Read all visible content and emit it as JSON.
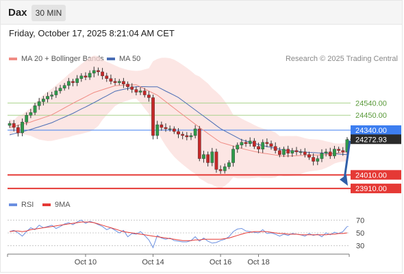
{
  "header": {
    "symbol": "Dax",
    "timeframe": "30 MIN"
  },
  "timestamp": "Friday, October 17, 2025 8:21:04 AM CET",
  "legend": {
    "ma20_label": "MA 20 + Bollinger Bands",
    "ma50_label": "MA 50",
    "copyright": "Research © 2025 Trading Central",
    "rsi_label": "RSI",
    "ma9_label": "9MA"
  },
  "colors": {
    "ma20": "#f08c84",
    "bollinger": "#fbdcd8",
    "ma50": "#4a6db5",
    "candle_up": "#2e9a4a",
    "candle_down": "#c62828",
    "resistance": "#a9d28c",
    "pivot": "#3d7ef0",
    "support": "#e53935",
    "rsi": "#6a8fe0",
    "rsi_ma": "#e53935",
    "price_tag": "#2b2b2b"
  },
  "chart_data": {
    "type": "candlestick",
    "title": "Dax",
    "xlabel": "",
    "ylabel": "",
    "x_ticks": [
      "Oct 10",
      "Oct 14",
      "Oct 16",
      "Oct 18"
    ],
    "ylim": [
      23860,
      24820
    ],
    "levels": {
      "resistance": [
        24540.0,
        24450.0
      ],
      "pivot": 24340.0,
      "current": 24272.93,
      "support": [
        24010.0,
        23910.0
      ]
    },
    "level_labels": {
      "r2": "24540.00",
      "r1": "24450.00",
      "pivot": "24340.00",
      "current": "24272.93",
      "s1": "24010.00",
      "s2": "23910.00"
    },
    "close": [
      24390,
      24360,
      24320,
      24400,
      24450,
      24470,
      24520,
      24550,
      24570,
      24590,
      24600,
      24630,
      24650,
      24670,
      24700,
      24690,
      24720,
      24740,
      24730,
      24760,
      24780,
      24770,
      24740,
      24720,
      24700,
      24690,
      24700,
      24680,
      24660,
      24640,
      24620,
      24630,
      24600,
      24580,
      24300,
      24380,
      24360,
      24350,
      24350,
      24330,
      24310,
      24300,
      24290,
      24300,
      24350,
      24130,
      24160,
      24100,
      24180,
      24050,
      24040,
      24070,
      24100,
      24200,
      24230,
      24250,
      24240,
      24260,
      24220,
      24200,
      24250,
      24240,
      24220,
      24190,
      24160,
      24200,
      24170,
      24190,
      24180,
      24180,
      24160,
      24140,
      24110,
      24130,
      24170,
      24180,
      24150,
      24200,
      24190,
      24180,
      24270
    ],
    "series": [
      {
        "name": "MA 20",
        "values": [
          24360,
          24368,
          24376,
          24384,
          24392,
          24400,
          24411,
          24421,
          24432,
          24442,
          24453,
          24470,
          24487,
          24504,
          24521,
          24538,
          24554,
          24570,
          24586,
          24602,
          24618,
          24628,
          24638,
          24648,
          24658,
          24668,
          24670,
          24671,
          24672,
          24674,
          24675,
          24660,
          24644,
          24629,
          24613,
          24598,
          24574,
          24550,
          24526,
          24502,
          24478,
          24454,
          24431,
          24407,
          24384,
          24360,
          24338,
          24316,
          24294,
          24272,
          24250,
          24241,
          24232,
          24223,
          24214,
          24205,
          24197,
          24190,
          24183,
          24177,
          24170,
          24166,
          24161,
          24157,
          24152,
          24148,
          24149,
          24150,
          24151,
          24153,
          24154,
          24155,
          24156,
          24157,
          24158,
          24160,
          24164,
          24168,
          24172,
          24176,
          24180
        ]
      },
      {
        "name": "MA 50",
        "values": [
          24305,
          24313,
          24321,
          24329,
          24337,
          24345,
          24355,
          24365,
          24375,
          24385,
          24395,
          24409,
          24423,
          24436,
          24450,
          24464,
          24480,
          24496,
          24511,
          24527,
          24543,
          24560,
          24577,
          24593,
          24610,
          24627,
          24634,
          24641,
          24647,
          24654,
          24661,
          24661,
          24661,
          24660,
          24660,
          24660,
          24644,
          24628,
          24613,
          24597,
          24581,
          24558,
          24535,
          24512,
          24489,
          24466,
          24443,
          24420,
          24397,
          24374,
          24351,
          24334,
          24318,
          24301,
          24285,
          24268,
          24260,
          24251,
          24243,
          24234,
          24226,
          24219,
          24212,
          24206,
          24199,
          24192,
          24189,
          24186,
          24184,
          24181,
          24178,
          24176,
          24175,
          24173,
          24172,
          24170,
          24168,
          24166,
          24163,
          24161,
          24159
        ]
      },
      {
        "name": "RSI",
        "values": [
          52,
          54,
          50,
          45,
          52,
          58,
          55,
          62,
          58,
          60,
          62,
          57,
          60,
          64,
          66,
          63,
          67,
          70,
          65,
          68,
          66,
          63,
          60,
          55,
          58,
          54,
          50,
          54,
          44,
          49,
          48,
          52,
          46,
          39,
          27,
          46,
          42,
          40,
          42,
          38,
          37,
          36,
          36,
          38,
          44,
          37,
          42,
          37,
          34,
          35,
          38,
          40,
          44,
          52,
          56,
          57,
          53,
          52,
          51,
          50,
          55,
          49,
          50,
          48,
          45,
          48,
          46,
          49,
          48,
          47,
          45,
          49,
          46,
          48,
          44,
          50,
          47,
          51,
          49,
          52,
          60
        ]
      },
      {
        "name": "9MA",
        "values": [
          52,
          53,
          53,
          52,
          53,
          55,
          56,
          57,
          58,
          59,
          60,
          61,
          62,
          63,
          64,
          65,
          66,
          67,
          67,
          67,
          66,
          64,
          62,
          60,
          58,
          56,
          54,
          52,
          51,
          50,
          49,
          48,
          47,
          46,
          45,
          44,
          43,
          42,
          41,
          40,
          39,
          38,
          38,
          38,
          39,
          39,
          40,
          40,
          40,
          40,
          40,
          41,
          42,
          44,
          46,
          48,
          50,
          51,
          52,
          52,
          52,
          52,
          51,
          50,
          49,
          49,
          48,
          48,
          48,
          47,
          47,
          47,
          47,
          47,
          47,
          47,
          48,
          48,
          49,
          49,
          50
        ]
      }
    ],
    "rsi_ticks": [
      70,
      50,
      30
    ],
    "rsi_ylim": [
      20,
      80
    ]
  }
}
